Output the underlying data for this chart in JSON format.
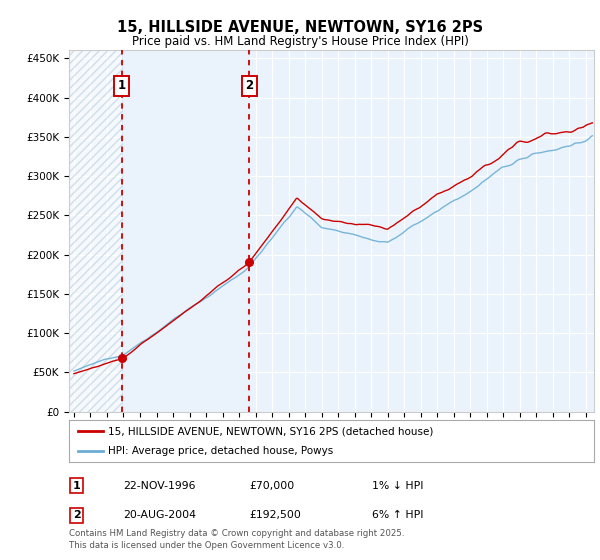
{
  "title": "15, HILLSIDE AVENUE, NEWTOWN, SY16 2PS",
  "subtitle": "Price paid vs. HM Land Registry's House Price Index (HPI)",
  "legend_line1": "15, HILLSIDE AVENUE, NEWTOWN, SY16 2PS (detached house)",
  "legend_line2": "HPI: Average price, detached house, Powys",
  "sale1_date": "22-NOV-1996",
  "sale1_price": "£70,000",
  "sale1_hpi": "1% ↓ HPI",
  "sale1_year": 1996.9,
  "sale1_value": 70000,
  "sale2_date": "20-AUG-2004",
  "sale2_price": "£192,500",
  "sale2_hpi": "6% ↑ HPI",
  "sale2_year": 2004.63,
  "sale2_value": 192500,
  "footer": "Contains HM Land Registry data © Crown copyright and database right 2025.\nThis data is licensed under the Open Government Licence v3.0.",
  "line_color_red": "#cc0000",
  "line_color_blue": "#6baed6",
  "background_color": "#ffffff",
  "plot_bg_color": "#eaf3fb",
  "hatch_bg_color": "#dce8f0",
  "ylim": [
    0,
    460000
  ],
  "xlim_start": 1993.7,
  "xlim_end": 2025.5
}
